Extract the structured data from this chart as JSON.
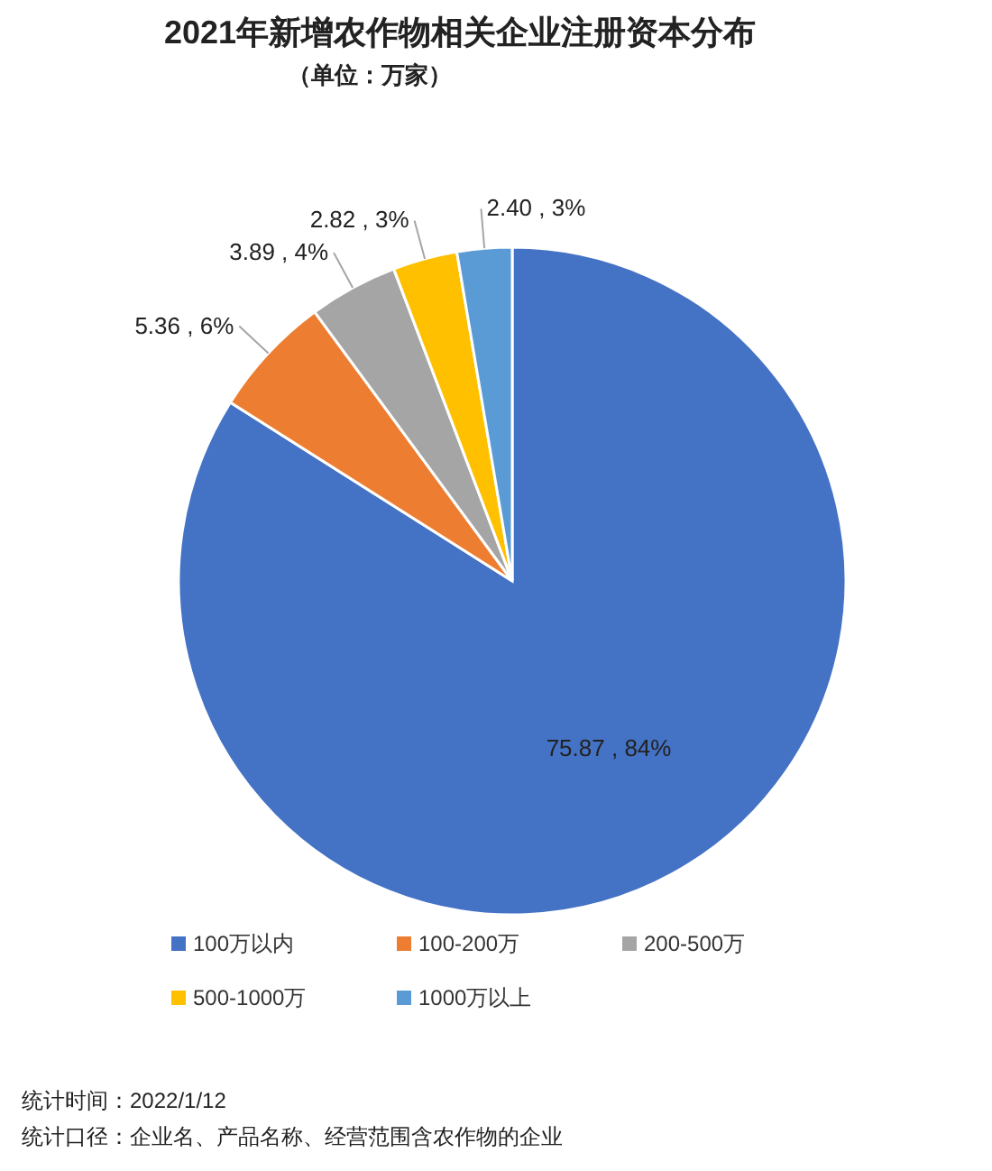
{
  "chart_data": {
    "type": "pie",
    "title": "2021年新增农作物相关企业注册资本分布",
    "subtitle": "（单位：万家）",
    "categories": [
      "100万以内",
      "100-200万",
      "200-500万",
      "500-1000万",
      "1000万以上"
    ],
    "values": [
      75.87,
      5.36,
      3.89,
      2.82,
      2.4
    ],
    "value_labels": [
      "75.87 , 84%",
      "5.36 , 6%",
      "3.89 , 4%",
      "2.82 , 3%",
      "2.40 , 3%"
    ],
    "colors": [
      "#4472c4",
      "#ed7d31",
      "#a5a5a5",
      "#ffc000",
      "#5b9bd5"
    ],
    "legend": "bottom",
    "annotations": [
      "统计时间：2022/1/12",
      "统计口径：企业名、产品名称、经营范围含农作物的企业"
    ]
  }
}
